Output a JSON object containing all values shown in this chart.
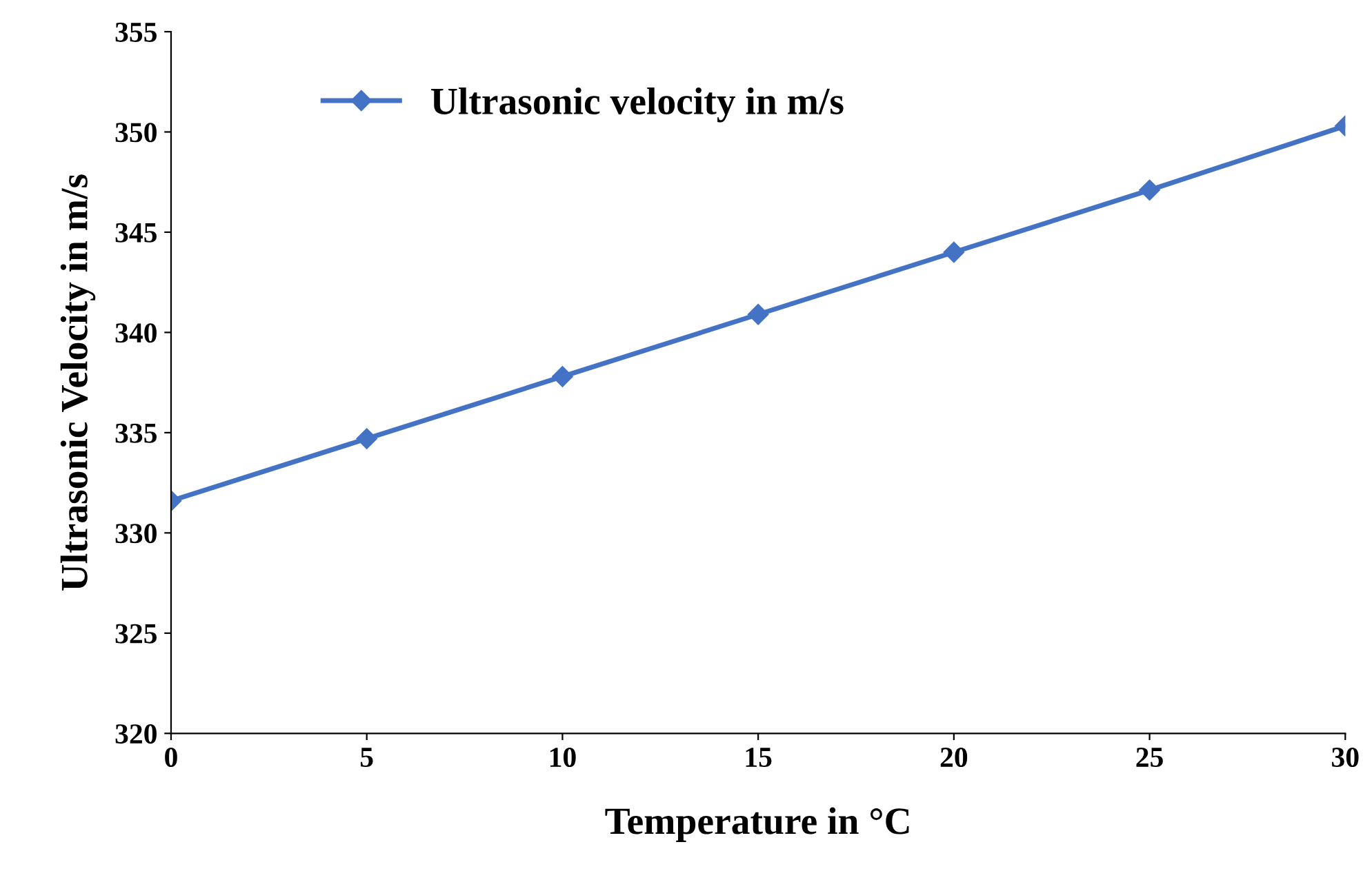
{
  "chart_data": {
    "type": "line",
    "xlabel": "Temperature in °C",
    "ylabel": "Ultrasonic Velocity in m/s",
    "x": [
      0,
      5,
      10,
      15,
      20,
      25,
      30
    ],
    "series": [
      {
        "name": "Ultrasonic velocity in m/s",
        "color": "#4472c4",
        "values": [
          331.6,
          334.7,
          337.8,
          340.9,
          344.0,
          347.1,
          350.3
        ]
      }
    ],
    "xlim": [
      0,
      30
    ],
    "xticks": [
      0,
      5,
      10,
      15,
      20,
      25,
      30
    ],
    "ylim": [
      320,
      355
    ],
    "yticks": [
      320,
      325,
      330,
      335,
      340,
      345,
      350,
      355
    ],
    "marker": "diamond",
    "line_style": "solid",
    "grid": false,
    "legend": "top left"
  }
}
